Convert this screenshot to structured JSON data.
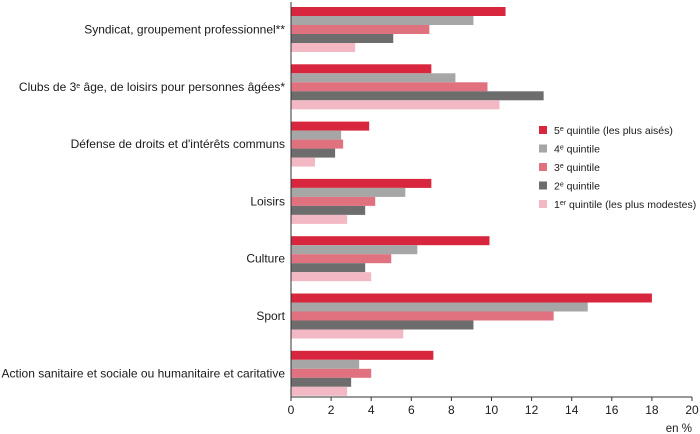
{
  "chart_data": {
    "type": "bar",
    "orientation": "horizontal",
    "categories": [
      "Syndicat, groupement professionnel**",
      "Clubs de 3e âge, de loisirs pour personnes âgées*",
      "Défense de droits et d'intérêts communs",
      "Loisirs",
      "Culture",
      "Sport",
      "Action sanitaire et sociale ou humanitaire et caritative"
    ],
    "category_parts": [
      [
        {
          "t": "Syndicat, groupement professionnel**"
        }
      ],
      [
        {
          "t": "Clubs de 3"
        },
        {
          "t": "e",
          "sup": true
        },
        {
          "t": " âge, de loisirs pour personnes âgées*"
        }
      ],
      [
        {
          "t": "Défense de droits et d'intérêts communs"
        }
      ],
      [
        {
          "t": "Loisirs"
        }
      ],
      [
        {
          "t": "Culture"
        }
      ],
      [
        {
          "t": "Sport"
        }
      ],
      [
        {
          "t": "Action sanitaire et sociale ou humanitaire et caritative"
        }
      ]
    ],
    "series": [
      {
        "name": "5e quintile (les plus aisés)",
        "name_parts": [
          {
            "t": "5"
          },
          {
            "t": "e",
            "sup": true
          },
          {
            "t": " quintile (les plus aisés)"
          }
        ],
        "color": "#d7263d",
        "values": [
          10.7,
          7.0,
          3.9,
          7.0,
          9.9,
          18.0,
          7.1
        ]
      },
      {
        "name": "4e quintile",
        "name_parts": [
          {
            "t": "4"
          },
          {
            "t": "e",
            "sup": true
          },
          {
            "t": " quintile"
          }
        ],
        "color": "#a6a6a6",
        "values": [
          9.1,
          8.2,
          2.5,
          5.7,
          6.3,
          14.8,
          3.4
        ]
      },
      {
        "name": "3e quintile",
        "name_parts": [
          {
            "t": "3"
          },
          {
            "t": "e",
            "sup": true
          },
          {
            "t": " quintile"
          }
        ],
        "color": "#e0717f",
        "values": [
          6.9,
          9.8,
          2.6,
          4.2,
          5.0,
          13.1,
          4.0
        ]
      },
      {
        "name": "2e quintile",
        "name_parts": [
          {
            "t": "2"
          },
          {
            "t": "e",
            "sup": true
          },
          {
            "t": " quintile"
          }
        ],
        "color": "#6d6d6d",
        "values": [
          5.1,
          12.6,
          2.2,
          3.7,
          3.7,
          9.1,
          3.0
        ]
      },
      {
        "name": "1er quintile (les plus modestes)",
        "name_parts": [
          {
            "t": "1"
          },
          {
            "t": "er",
            "sup": true
          },
          {
            "t": " quintile (les plus modestes)"
          }
        ],
        "color": "#f2b8c3",
        "values": [
          3.2,
          10.4,
          1.2,
          2.8,
          4.0,
          5.6,
          2.8
        ]
      }
    ],
    "xlim": [
      0,
      20
    ],
    "xticks": [
      0,
      2,
      4,
      6,
      8,
      10,
      12,
      14,
      16,
      18,
      20
    ],
    "xlabel": "en %",
    "grid": false,
    "legend_position": "right"
  }
}
